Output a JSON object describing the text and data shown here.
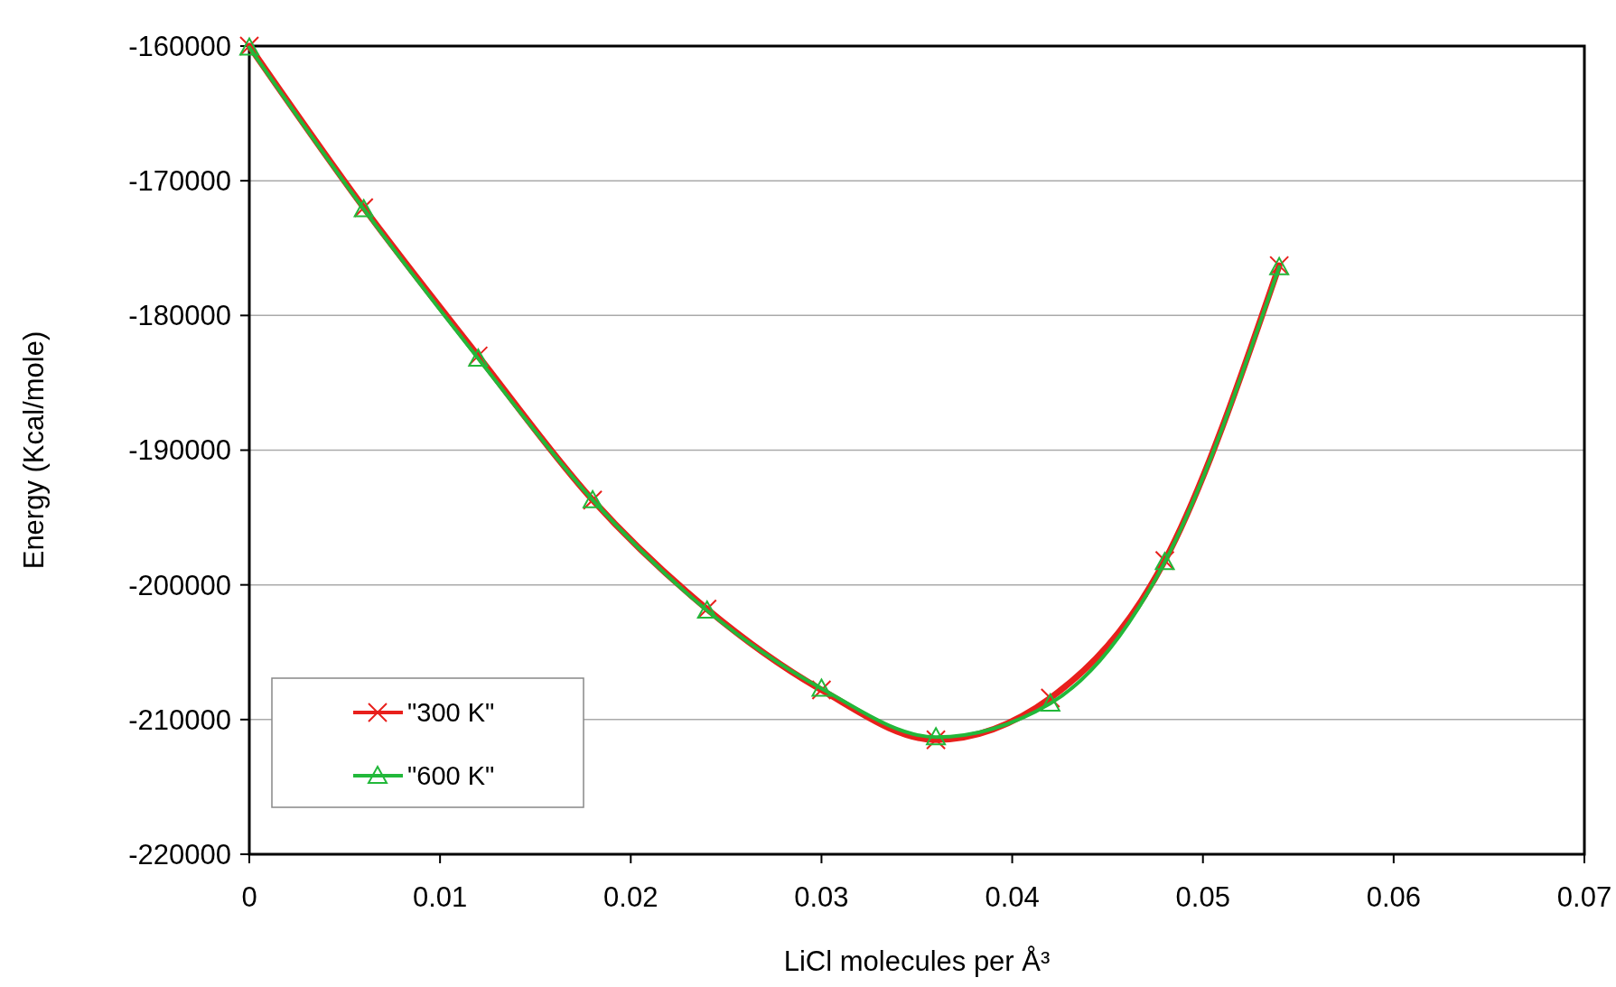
{
  "chart_data": {
    "type": "line",
    "xlabel": "LiCl molecules per Å³",
    "ylabel": "Energy (Kcal/mole)",
    "x": [
      0,
      0.006,
      0.012,
      0.018,
      0.024,
      0.03,
      0.036,
      0.042,
      0.048,
      0.054
    ],
    "series": [
      {
        "name": "\"300 K\"",
        "color": "#e8201c",
        "marker": "cross",
        "values": [
          -160000,
          -172000,
          -183000,
          -193700,
          -201800,
          -207800,
          -211500,
          -208400,
          -198200,
          -176300
        ]
      },
      {
        "name": "\"600 K\"",
        "color": "#22b83a",
        "marker": "triangle",
        "values": [
          -160100,
          -172100,
          -183200,
          -193700,
          -201900,
          -207700,
          -211300,
          -208800,
          -198300,
          -176400
        ]
      }
    ],
    "xlim": [
      0,
      0.07
    ],
    "xticks": [
      0,
      0.01,
      0.02,
      0.03,
      0.04,
      0.05,
      0.06,
      0.07
    ],
    "ylim": [
      -220000,
      -160000
    ],
    "yticks": [
      -220000,
      -210000,
      -200000,
      -190000,
      -180000,
      -170000,
      -160000
    ],
    "grid": "y",
    "legend": "bottom left",
    "line_style": "solid"
  }
}
